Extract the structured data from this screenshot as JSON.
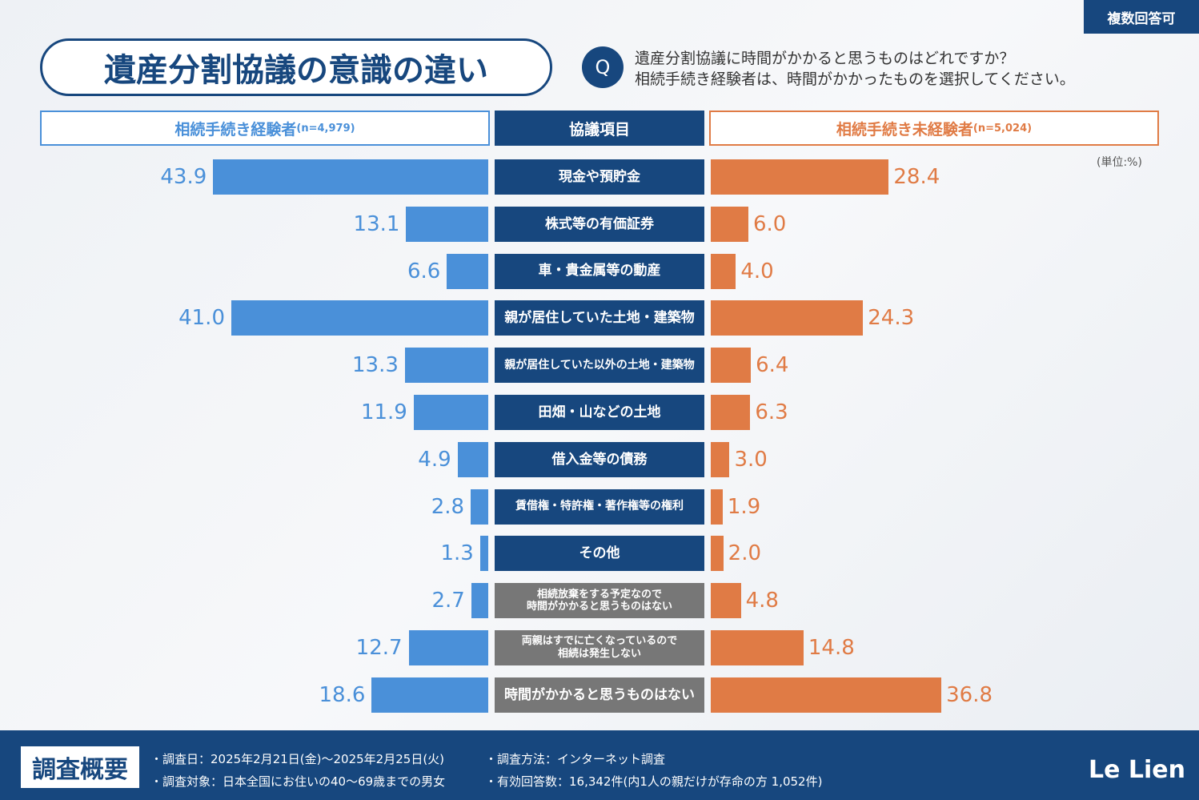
{
  "badge": "複数回答可",
  "title": "遺産分割協議の意識の違い",
  "question": [
    "遺産分割協議に時間がかかると思うものはどれですか？",
    "相続手続き経験者は、時間がかかったものを選択してください。"
  ],
  "chart_data": {
    "type": "butterfly",
    "center_header": "協議項目",
    "unit": "(単位:%)",
    "categories": [
      "現金や預貯金",
      "株式等の有価証券",
      "車・貴金属等の動産",
      "親が居住していた土地・建築物",
      "親が居住していた以外の土地・建築物",
      "田畑・山などの土地",
      "借入金等の債務",
      "賃借権・特許権・著作権等の権利",
      "その他",
      "相続放棄をする予定なので\n時間がかかると思うものはない",
      "両親はすでに亡くなっているので\n相続は発生しない",
      "時間がかかると思うものはない"
    ],
    "category_colors": [
      "#17477e",
      "#17477e",
      "#17477e",
      "#17477e",
      "#17477e",
      "#17477e",
      "#17477e",
      "#17477e",
      "#17477e",
      "#777777",
      "#777777",
      "#777777"
    ],
    "series": [
      {
        "name": "相続手続き経験者",
        "n_label": "(n=4,979)",
        "color": "#4a90d9",
        "values": [
          43.9,
          13.1,
          6.6,
          41,
          13.3,
          11.9,
          4.9,
          2.8,
          1.3,
          2.7,
          12.7,
          18.6
        ],
        "value_labels": [
          "43.9",
          "13.1",
          "6.6",
          "41.0",
          "13.3",
          "11.9",
          "4.9",
          "2.8",
          "1.3",
          "2.7",
          "12.7",
          "18.6"
        ]
      },
      {
        "name": "相続手続き未経験者",
        "n_label": "(n=5,024)",
        "color": "#e07b45",
        "values": [
          28.4,
          6,
          4,
          24.3,
          6.4,
          6.3,
          3,
          1.9,
          2,
          4.8,
          14.8,
          36.8
        ],
        "value_labels": [
          "28.4",
          "6.0",
          "4.0",
          "24.3",
          "6.4",
          "6.3",
          "3.0",
          "1.9",
          "2.0",
          "4.8",
          "14.8",
          "36.8"
        ]
      }
    ]
  },
  "footer": {
    "heading": "調査概要",
    "notes": [
      "・調査日：2025年2月21日(金)～2025年2月25日(火)",
      "・調査対象：日本全国にお住いの40～69歳までの男女",
      "・調査方法：インターネット調査",
      "・有効回答数：16,342件(内1人の親だけが存命の方 1,052件)"
    ],
    "logo": "Le Lien"
  }
}
